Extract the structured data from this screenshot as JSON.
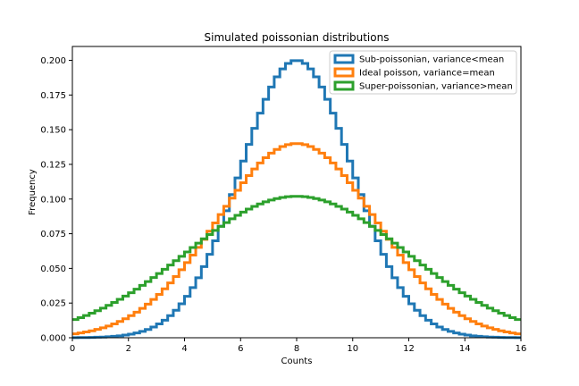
{
  "chart_data": {
    "type": "line",
    "step": true,
    "title": "Simulated poissonian distributions",
    "xlabel": "Counts",
    "ylabel": "Frequency",
    "xlim": [
      0,
      16
    ],
    "ylim": [
      0,
      0.21
    ],
    "x_ticks": [
      0,
      2,
      4,
      6,
      8,
      10,
      12,
      14,
      16
    ],
    "y_ticks": [
      0.0,
      0.025,
      0.05,
      0.075,
      0.1,
      0.125,
      0.15,
      0.175,
      0.2
    ],
    "x_tick_labels": [
      "0",
      "2",
      "4",
      "6",
      "8",
      "10",
      "12",
      "14",
      "16"
    ],
    "y_tick_labels": [
      "0.000",
      "0.025",
      "0.050",
      "0.075",
      "0.100",
      "0.125",
      "0.150",
      "0.175",
      "0.200"
    ],
    "bin_width": 0.2,
    "grid": false,
    "legend_position": "top-right",
    "series": [
      {
        "name": "Sub-poissonian, variance<mean",
        "color": "#1f77b4",
        "mean": 8.0,
        "sigma": 2.0,
        "peak": 0.2
      },
      {
        "name": "Ideal poisson, variance=mean",
        "color": "#ff7f0e",
        "mean": 8.0,
        "sigma": 2.83,
        "peak": 0.14
      },
      {
        "name": "Super-poissonian, variance>mean",
        "color": "#2ca02c",
        "mean": 8.0,
        "sigma": 3.9,
        "peak": 0.102
      }
    ]
  }
}
